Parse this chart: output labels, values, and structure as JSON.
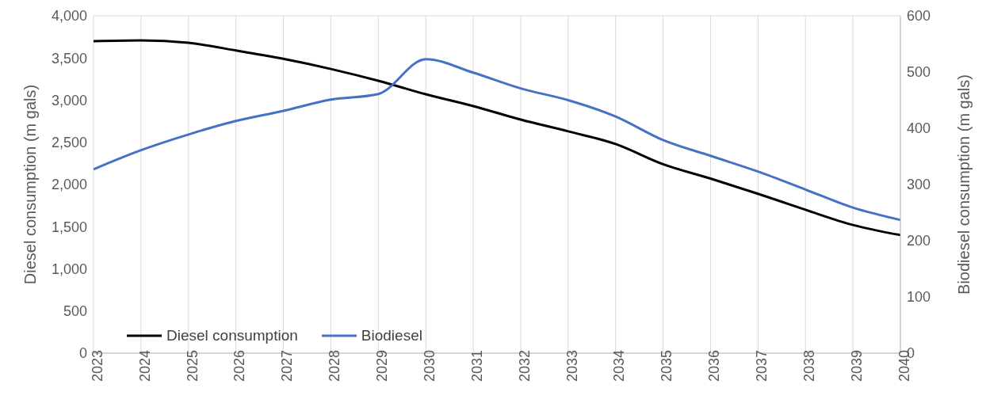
{
  "chart_data": {
    "type": "line",
    "ylabel": "Diesel consumption (m gals)",
    "y2label": "Biodiesel consumption (m gals)",
    "x": [
      2023,
      2024,
      2025,
      2026,
      2027,
      2028,
      2029,
      2030,
      2031,
      2032,
      2033,
      2034,
      2035,
      2036,
      2037,
      2038,
      2039,
      2040
    ],
    "series": [
      {
        "name": "Diesel consumption",
        "color": "#000000",
        "values": [
          3700,
          3710,
          3680,
          3590,
          3490,
          3370,
          3230,
          3070,
          2930,
          2770,
          2630,
          2480,
          2240,
          2070,
          1890,
          1700,
          1520,
          1400
        ]
      },
      {
        "name": "Biodiesel",
        "color": "#4472c4",
        "axis": "y2",
        "values": [
          327,
          361,
          389,
          413,
          431,
          451,
          461,
          523,
          499,
          471,
          450,
          421,
          379,
          351,
          323,
          291,
          259,
          237
        ]
      }
    ],
    "xlim": [
      2023,
      2040
    ],
    "xticks": [
      2023,
      2024,
      2025,
      2026,
      2027,
      2028,
      2029,
      2030,
      2031,
      2032,
      2033,
      2034,
      2035,
      2036,
      2037,
      2038,
      2039,
      2040
    ],
    "ylim": [
      0,
      4000
    ],
    "yticks": [
      0,
      {
        "value": 500,
        "label": "500"
      },
      {
        "value": 1000,
        "label": "1,000"
      },
      {
        "value": 1500,
        "label": "1,500"
      },
      {
        "value": 2000,
        "label": "2,000"
      },
      {
        "value": 2500,
        "label": "2,500"
      },
      {
        "value": 3000,
        "label": "3,000"
      },
      {
        "value": 3500,
        "label": "3,500"
      },
      {
        "value": 4000,
        "label": "4,000"
      }
    ],
    "y2lim": [
      0,
      600
    ],
    "y2ticks": [
      0,
      100,
      200,
      300,
      400,
      500,
      600
    ],
    "grid": true,
    "legend": "bottom left",
    "marker": "none",
    "line_style": "solid"
  }
}
